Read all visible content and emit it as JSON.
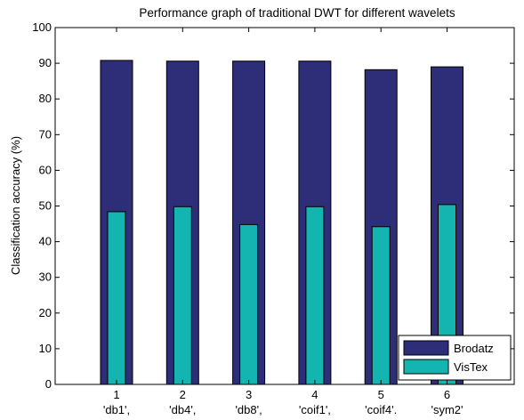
{
  "chart_data": {
    "type": "bar",
    "title": "Performance graph of traditional DWT for different wavelets",
    "ylabel": "Classification accuracy (%)",
    "xlabel": "",
    "ylim": [
      0,
      100
    ],
    "yticks": [
      0,
      10,
      20,
      30,
      40,
      50,
      60,
      70,
      80,
      90,
      100
    ],
    "categories": [
      "1",
      "2",
      "3",
      "4",
      "5",
      "6"
    ],
    "category_sublabels": [
      "'db1',",
      "'db4',",
      "'db8',",
      "'coif1',",
      "'coif4'.",
      "'sym2'"
    ],
    "series": [
      {
        "name": "Brodatz",
        "color": "#2e2e78",
        "values": [
          90.8,
          90.6,
          90.6,
          90.6,
          88.2,
          89.0
        ]
      },
      {
        "name": "VisTex",
        "color": "#14b4b0",
        "values": [
          48.4,
          49.8,
          44.8,
          49.8,
          44.2,
          50.4
        ]
      }
    ],
    "legend": {
      "position": "bottom-right"
    },
    "grid": false
  }
}
